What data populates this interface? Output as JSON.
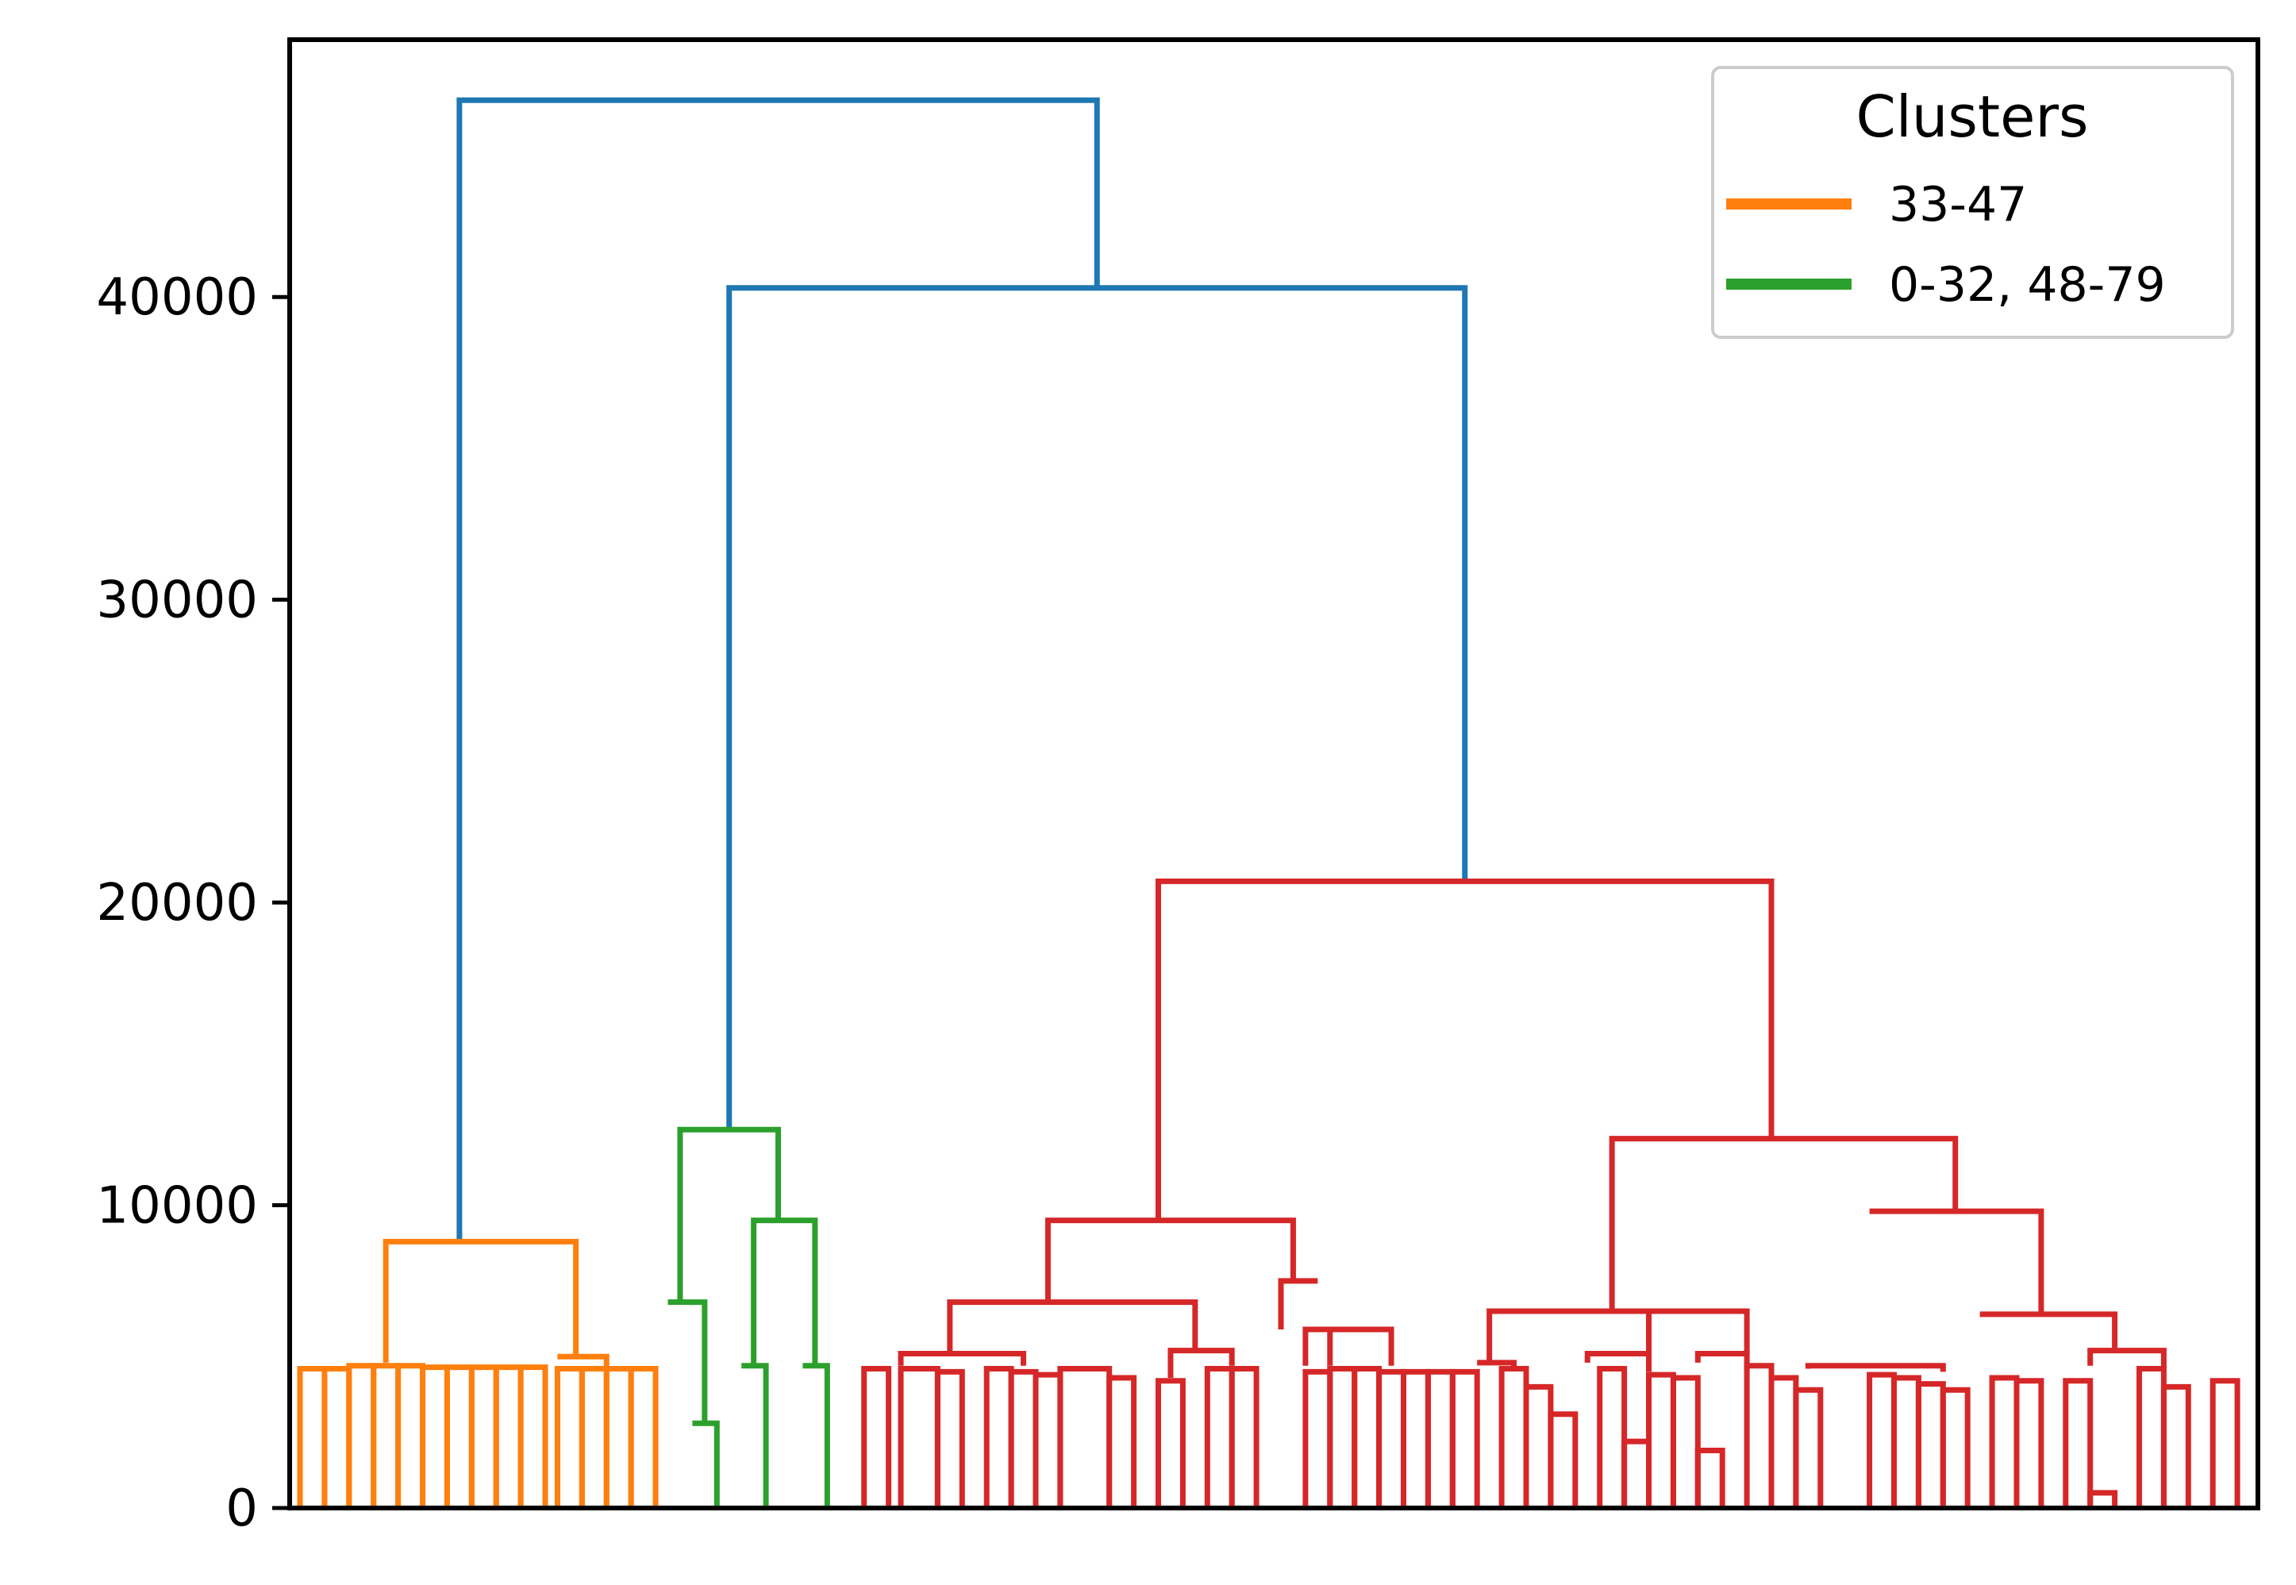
{
  "chart_data": {
    "type": "dendrogram",
    "ylim": [
      0,
      48500
    ],
    "yticks": [
      0,
      10000,
      20000,
      30000,
      40000
    ],
    "ytick_labels": [
      "0",
      "10000",
      "20000",
      "30000",
      "40000"
    ],
    "xticks_visible": false,
    "legend": {
      "title": "Clusters",
      "placement": "top-right",
      "entries": [
        {
          "label": "33-47",
          "color": "#ff7f0e"
        },
        {
          "label": "0-32, 48-79",
          "color": "#2ca02c"
        }
      ]
    },
    "colors": {
      "orange": "#ff7f0e",
      "green": "#2ca02c",
      "red": "#d62728",
      "blue": "#1f77b4"
    },
    "leaf_count": 80,
    "orange_groups": [
      [
        4600,
        4600,
        4700,
        4700,
        4700,
        4650,
        4650,
        4650,
        4650,
        4650
      ],
      [
        4600,
        4600,
        4600,
        4600
      ]
    ],
    "links": [
      {
        "color": "blue",
        "x": [
          6.5,
          6.5,
          32.5,
          32.5
        ],
        "y": [
          8800,
          46500,
          46500,
          40300
        ]
      },
      {
        "color": "blue",
        "x": [
          17.5,
          17.5,
          47.5,
          47.5
        ],
        "y": [
          12500,
          40300,
          40300,
          20700
        ]
      },
      {
        "color": "orange",
        "x": [
          3.5,
          3.5,
          11.25,
          11.25
        ],
        "y": [
          4800,
          8800,
          8800,
          5000
        ]
      },
      {
        "color": "orange",
        "x": [
          10.5,
          10.5,
          12.5,
          12.5
        ],
        "y": [
          5000,
          5000,
          5000,
          4600
        ]
      },
      {
        "color": "green",
        "x": [
          15.5,
          15.5,
          19.5,
          19.5
        ],
        "y": [
          6800,
          12500,
          12500,
          9500
        ]
      },
      {
        "color": "green",
        "x": [
          15,
          15,
          16.5,
          16.5
        ],
        "y": [
          6800,
          6800,
          6800,
          2800
        ]
      },
      {
        "color": "green",
        "x": [
          16,
          16,
          17,
          17
        ],
        "y": [
          2800,
          2800,
          2800,
          0
        ]
      },
      {
        "color": "green",
        "x": [
          18.5,
          18.5,
          21,
          21
        ],
        "y": [
          4700,
          9500,
          9500,
          4700
        ]
      },
      {
        "color": "green",
        "x": [
          18,
          18,
          19,
          19
        ],
        "y": [
          4700,
          4700,
          4700,
          0
        ]
      },
      {
        "color": "green",
        "x": [
          20.5,
          20.5,
          21.5,
          21.5
        ],
        "y": [
          4700,
          4700,
          4700,
          0
        ]
      },
      {
        "color": "red",
        "x": [
          35,
          35,
          60,
          60
        ],
        "y": [
          9500,
          20700,
          20700,
          12200
        ]
      },
      {
        "color": "red",
        "x": [
          53.5,
          53.5,
          67.5,
          67.5
        ],
        "y": [
          6500,
          12200,
          12200,
          9800
        ]
      },
      {
        "color": "red",
        "x": [
          30.5,
          30.5,
          40.5,
          40.5
        ],
        "y": [
          6800,
          9500,
          9500,
          7500
        ]
      },
      {
        "color": "red",
        "x": [
          26.5,
          26.5,
          36.5,
          36.5
        ],
        "y": [
          5100,
          6800,
          6800,
          5200
        ]
      },
      {
        "color": "red",
        "x": [
          24.5,
          24.5,
          29.5,
          29.5
        ],
        "y": [
          4700,
          5100,
          5100,
          4700
        ]
      },
      {
        "color": "red",
        "x": [
          35.5,
          35.5,
          38,
          38
        ],
        "y": [
          4300,
          5200,
          5200,
          4700
        ]
      },
      {
        "color": "red",
        "x": [
          40,
          40,
          41.5,
          41.5
        ],
        "y": [
          5900,
          7500,
          7500,
          7500
        ]
      },
      {
        "color": "red",
        "x": [
          41,
          41,
          42.5,
          42.5
        ],
        "y": [
          4700,
          5900,
          5900,
          5900
        ]
      },
      {
        "color": "red",
        "x": [
          42,
          42,
          44.5,
          44.5
        ],
        "y": [
          4700,
          5900,
          5900,
          4700
        ]
      },
      {
        "color": "red",
        "x": [
          48.5,
          48.5,
          57,
          57
        ],
        "y": [
          4800,
          6500,
          6500,
          6500
        ]
      },
      {
        "color": "red",
        "x": [
          48,
          48,
          49.5,
          49.5
        ],
        "y": [
          4800,
          4800,
          4800,
          4600
        ]
      },
      {
        "color": "red",
        "x": [
          55,
          55,
          59,
          59
        ],
        "y": [
          5100,
          6500,
          6500,
          5100
        ]
      },
      {
        "color": "red",
        "x": [
          52.5,
          52.5,
          55,
          55
        ],
        "y": [
          4800,
          5100,
          5100,
          4500
        ]
      },
      {
        "color": "red",
        "x": [
          57,
          57,
          59,
          59
        ],
        "y": [
          4800,
          5100,
          5100,
          4500
        ]
      },
      {
        "color": "red",
        "x": [
          64,
          64,
          71,
          71
        ],
        "y": [
          9800,
          9800,
          9800,
          6400
        ]
      },
      {
        "color": "red",
        "x": [
          68.5,
          68.5,
          74,
          74
        ],
        "y": [
          6400,
          6400,
          6400,
          5200
        ]
      },
      {
        "color": "red",
        "x": [
          61.5,
          61.5,
          67,
          67
        ],
        "y": [
          4600,
          4700,
          4700,
          4500
        ]
      },
      {
        "color": "red",
        "x": [
          73,
          73,
          76,
          76
        ],
        "y": [
          4700,
          5200,
          5200,
          4600
        ]
      }
    ]
  }
}
